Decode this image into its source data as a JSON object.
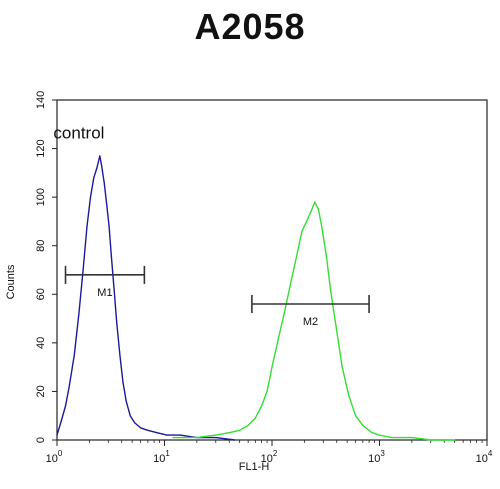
{
  "chart_data": {
    "type": "line",
    "title": "A2058",
    "xlabel": "FL1-H",
    "ylabel": "Counts",
    "x_scale": "log",
    "xlim": [
      1,
      10000
    ],
    "ylim": [
      0,
      140
    ],
    "x_ticks": [
      {
        "value": 1,
        "base": "10",
        "exp": "0"
      },
      {
        "value": 10,
        "base": "10",
        "exp": "1"
      },
      {
        "value": 100,
        "base": "10",
        "exp": "2"
      },
      {
        "value": 1000,
        "base": "10",
        "exp": "3"
      },
      {
        "value": 10000,
        "base": "10",
        "exp": "4"
      }
    ],
    "y_ticks": [
      0,
      20,
      40,
      60,
      80,
      100,
      120,
      140
    ],
    "grid": false,
    "annotations": [
      {
        "text": "control",
        "x": 1.6,
        "y": 130
      }
    ],
    "series": [
      {
        "color": "#1a1a9a",
        "x": [
          1.0,
          1.1,
          1.2,
          1.3,
          1.45,
          1.6,
          1.75,
          1.9,
          2.05,
          2.2,
          2.35,
          2.5,
          2.6,
          2.75,
          2.9,
          3.05,
          3.2,
          3.4,
          3.6,
          3.85,
          4.1,
          4.4,
          4.8,
          5.3,
          6.0,
          7.0,
          8.5,
          10.5,
          14,
          20,
          30,
          45
        ],
        "values": [
          2,
          8,
          14,
          22,
          35,
          52,
          70,
          88,
          100,
          108,
          112,
          117,
          113,
          106,
          97,
          88,
          76,
          62,
          48,
          35,
          24,
          16,
          10,
          7,
          5,
          4,
          3,
          2,
          2,
          1,
          1,
          0
        ]
      },
      {
        "color": "#33dd33",
        "x": [
          12,
          20,
          30,
          40,
          50,
          60,
          70,
          80,
          90,
          100,
          115,
          130,
          150,
          170,
          190,
          210,
          230,
          250,
          270,
          290,
          320,
          350,
          400,
          450,
          520,
          600,
          700,
          850,
          1000,
          1300,
          2000,
          3000,
          5000
        ],
        "values": [
          1,
          1,
          2,
          3,
          4,
          6,
          9,
          14,
          20,
          30,
          42,
          52,
          65,
          76,
          86,
          90,
          94,
          98,
          95,
          88,
          76,
          62,
          45,
          30,
          18,
          10,
          6,
          3,
          2,
          1,
          1,
          0,
          0
        ]
      }
    ],
    "gates": [
      {
        "label": "M1",
        "x_start": 1.2,
        "x_end": 6.5,
        "y": 68
      },
      {
        "label": "M2",
        "x_start": 65,
        "x_end": 800,
        "y": 56
      }
    ]
  }
}
